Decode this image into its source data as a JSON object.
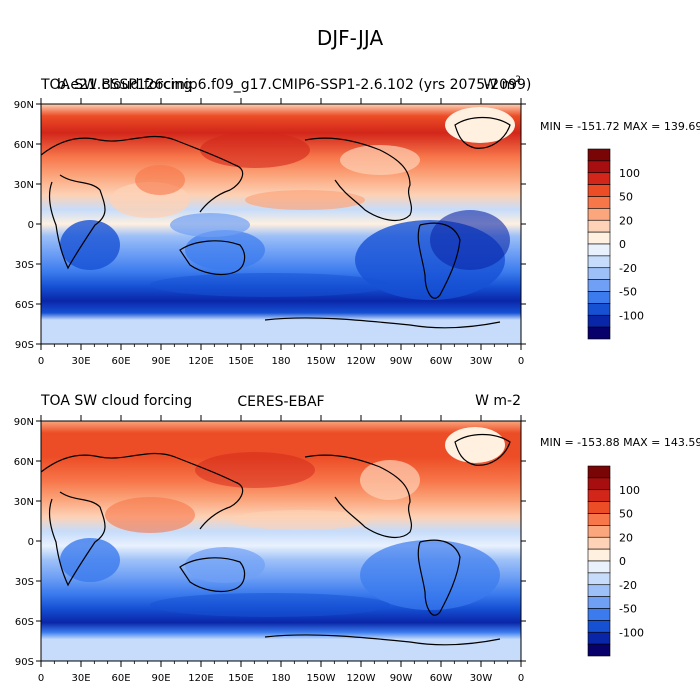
{
  "figure_title": "DJF-JJA",
  "colorbar_colors": [
    "#08006b",
    "#0a26a8",
    "#1651d4",
    "#3b7bee",
    "#6fa0f5",
    "#9dc0f8",
    "#c6dcfa",
    "#e9f1fd",
    "#fff0e0",
    "#fdd2b6",
    "#fba67d",
    "#f7764a",
    "#ec4d26",
    "#d2261a",
    "#a70e0f",
    "#7a0507"
  ],
  "colorbar_labels": [
    "100",
    "50",
    "20",
    "0",
    "-20",
    "-50",
    "-100"
  ],
  "lon_ticks": [
    "0",
    "30E",
    "60E",
    "90E",
    "120E",
    "150E",
    "180",
    "150W",
    "120W",
    "90W",
    "60W",
    "30W",
    "0"
  ],
  "lat_ticks": [
    "90N",
    "60N",
    "30N",
    "0",
    "30S",
    "60S",
    "90S"
  ],
  "panels": [
    {
      "left_title": "TOA SW cloud forcing",
      "overlap_title": "b.e21.BSSP126cmip6.f09_g17.CMIP6-SSP1-2.6.102 (yrs 2075-2099)",
      "center_title": "",
      "right_title": "W m",
      "right_title_sup": "2",
      "stats": "MIN = -151.72 MAX = 139.69"
    },
    {
      "left_title": "TOA SW cloud forcing",
      "overlap_title": "",
      "center_title": "CERES-EBAF",
      "right_title": "W m-2",
      "right_title_sup": "",
      "stats": "MIN = -153.88 MAX = 143.59"
    }
  ]
}
